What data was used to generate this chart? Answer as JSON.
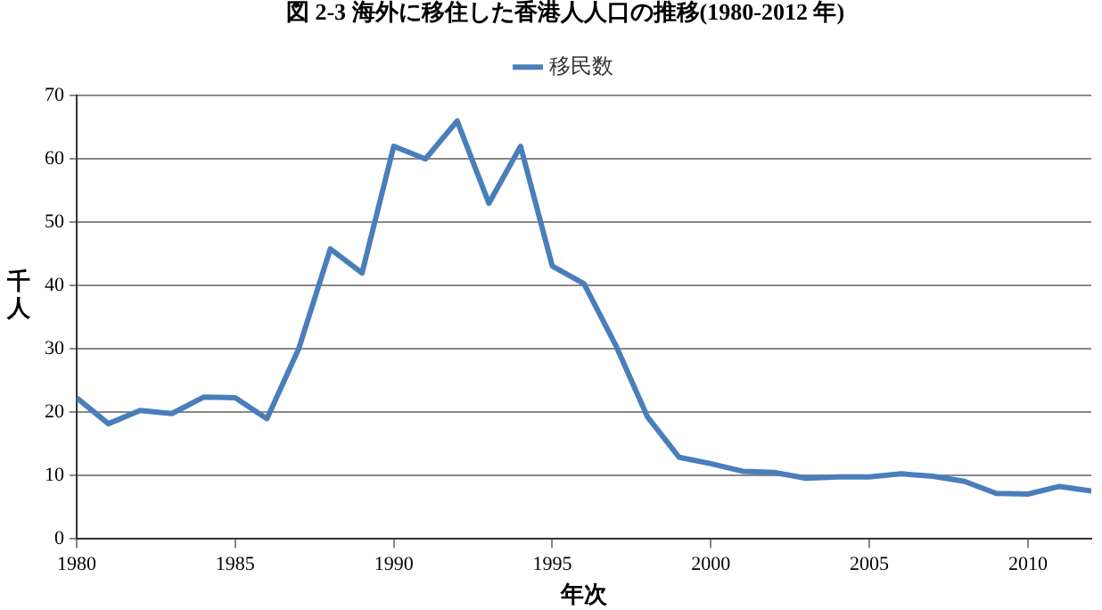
{
  "chart_data": {
    "type": "line",
    "title": "図 2-3 海外に移住した香港人人口の推移(1980-2012 年)",
    "xlabel": "年次",
    "ylabel": "千人",
    "x": [
      1980,
      1981,
      1982,
      1983,
      1984,
      1985,
      1986,
      1987,
      1988,
      1989,
      1990,
      1991,
      1992,
      1993,
      1994,
      1995,
      1996,
      1997,
      1998,
      1999,
      2000,
      2001,
      2002,
      2003,
      2004,
      2005,
      2006,
      2007,
      2008,
      2009,
      2010,
      2011,
      2012
    ],
    "series": [
      {
        "name": "移民数",
        "color": "#4a7ebb",
        "values": [
          22.3,
          18.2,
          20.3,
          19.8,
          22.4,
          22.3,
          19.0,
          30.0,
          45.8,
          42.0,
          62.0,
          60.0,
          66.0,
          53.0,
          62.0,
          43.1,
          40.3,
          30.6,
          19.3,
          12.9,
          11.9,
          10.7,
          10.5,
          9.6,
          9.8,
          9.8,
          10.3,
          9.9,
          9.1,
          7.2,
          7.1,
          8.3,
          7.6
        ]
      }
    ],
    "xlim": [
      1980,
      2012
    ],
    "xticks": [
      1980,
      1985,
      1990,
      1995,
      2000,
      2005,
      2010
    ],
    "ylim": [
      0,
      70
    ],
    "yticks": [
      0,
      10,
      20,
      30,
      40,
      50,
      60,
      70
    ],
    "grid": "y",
    "legend": "top",
    "marker": "none",
    "line_style": "solid"
  }
}
